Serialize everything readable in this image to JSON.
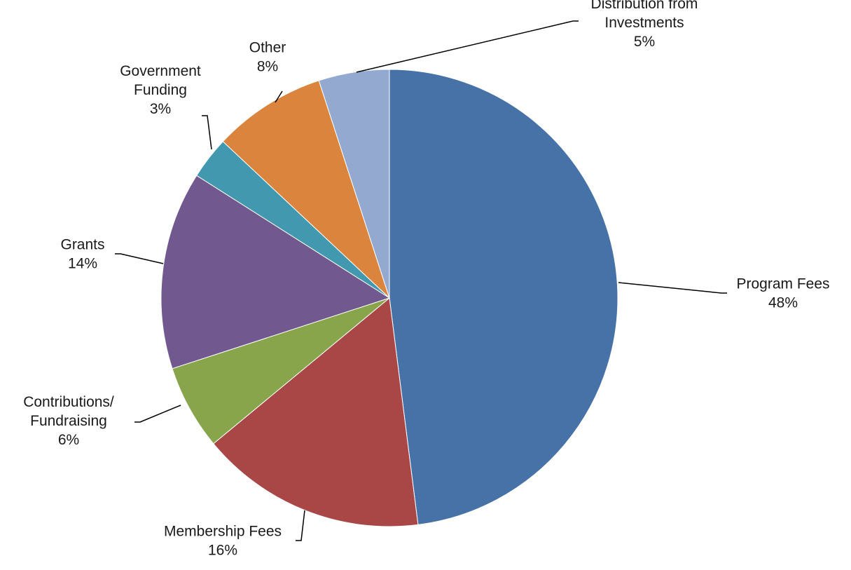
{
  "chart_data": {
    "type": "pie",
    "title": "",
    "start_angle_deg": 0,
    "direction": "clockwise",
    "slices": [
      {
        "label_lines": [
          "Program Fees"
        ],
        "pct_label": "48%",
        "value": 48,
        "color": "#4672A8"
      },
      {
        "label_lines": [
          "Membership Fees"
        ],
        "pct_label": "16%",
        "value": 16,
        "color": "#A84745"
      },
      {
        "label_lines": [
          "Contributions/",
          "Fundraising"
        ],
        "pct_label": "6%",
        "value": 6,
        "color": "#88A54C"
      },
      {
        "label_lines": [
          "Grants"
        ],
        "pct_label": "14%",
        "value": 14,
        "color": "#71588F"
      },
      {
        "label_lines": [
          "Government",
          "Funding"
        ],
        "pct_label": "3%",
        "value": 3,
        "color": "#4198AF"
      },
      {
        "label_lines": [
          "Other"
        ],
        "pct_label": "8%",
        "value": 8,
        "color": "#DB843D"
      },
      {
        "label_lines": [
          "Distribution from",
          "Investments"
        ],
        "pct_label": "5%",
        "value": 5,
        "color": "#93A9CF"
      }
    ]
  }
}
